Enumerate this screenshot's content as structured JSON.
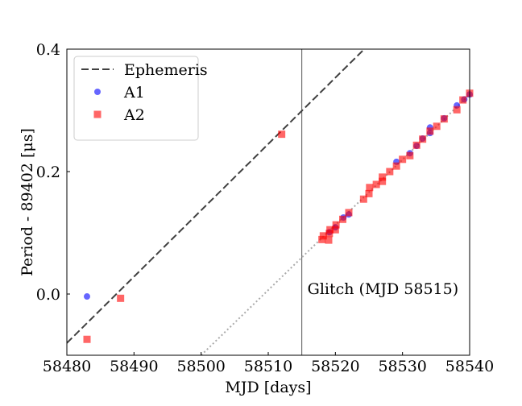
{
  "chart_data": {
    "type": "scatter",
    "xlabel": "MJD [days]",
    "ylabel": "Period - 89402 [μs]",
    "xlim": [
      58480,
      58540
    ],
    "ylim": [
      -0.1,
      0.4
    ],
    "xticks": [
      58480,
      58490,
      58500,
      58510,
      58520,
      58530,
      58540
    ],
    "yticks": [
      {
        "value": 0,
        "label": "0.0"
      },
      0.2,
      0.4
    ],
    "legend": "upper left",
    "lines": [
      {
        "name": "Ephemeris",
        "color": "#404040",
        "style": "dashed",
        "x": [
          58480,
          58524.3
        ],
        "values": [
          -0.08,
          0.4
        ]
      },
      {
        "color": "#aaaaaa",
        "style": "dotted",
        "x": [
          58500,
          58540
        ],
        "values": [
          -0.1,
          0.326
        ]
      }
    ],
    "series": [
      {
        "name": "A1",
        "color": "#0000ff",
        "marker": "circle",
        "x": [
          58483.0,
          58519.1,
          58520.0,
          58521.2,
          58522.0,
          58529.1,
          58531.1,
          58532.1,
          58533.0,
          58534.1,
          58534.1,
          58536.2,
          58538.1,
          58539.2,
          58540.0
        ],
        "values": [
          -0.004,
          0.101,
          0.109,
          0.125,
          0.13,
          0.216,
          0.23,
          0.242,
          0.254,
          0.272,
          0.263,
          0.287,
          0.308,
          0.318,
          0.326
        ]
      },
      {
        "name": "A2",
        "color": "#ff0000",
        "marker": "square",
        "x": [
          58483.0,
          58488.0,
          58512.0,
          58518.0,
          58518.2,
          58519.0,
          58519.1,
          58519.2,
          58520.0,
          58520.1,
          58521.1,
          58522.0,
          58524.2,
          58525.0,
          58525.1,
          58526.1,
          58527.0,
          58527.0,
          58528.1,
          58529.1,
          58530.0,
          58531.1,
          58532.1,
          58533.0,
          58534.1,
          58535.1,
          58536.2,
          58538.1,
          58539.0,
          58540.0
        ],
        "values": [
          -0.074,
          -0.007,
          0.261,
          0.089,
          0.095,
          0.088,
          0.099,
          0.105,
          0.105,
          0.113,
          0.122,
          0.133,
          0.155,
          0.164,
          0.174,
          0.179,
          0.191,
          0.184,
          0.2,
          0.209,
          0.22,
          0.226,
          0.243,
          0.253,
          0.266,
          0.274,
          0.286,
          0.301,
          0.317,
          0.328
        ]
      }
    ],
    "vline": {
      "x": 58515,
      "label": "Glitch (MJD 58515)",
      "color": "#555555"
    }
  }
}
